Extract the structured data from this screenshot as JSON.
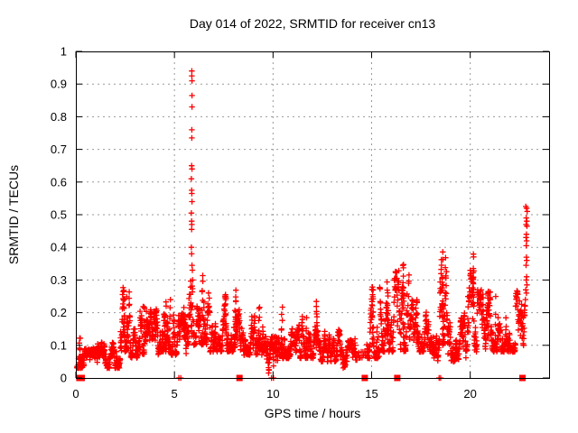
{
  "window": {
    "background": "#ffffff"
  },
  "chart_data": {
    "type": "scatter",
    "title": "Day 014 of 2022, SRMTID for receiver cn13",
    "xlabel": "GPS time / hours",
    "ylabel": "SRMTID / TECUs",
    "xlim": [
      0,
      24
    ],
    "ylim": [
      0,
      1
    ],
    "grid": true,
    "legend": "none",
    "xticks": [
      {
        "v": 0,
        "label": "0"
      },
      {
        "v": 5,
        "label": "5"
      },
      {
        "v": 10,
        "label": "10"
      },
      {
        "v": 15,
        "label": "15"
      },
      {
        "v": 20,
        "label": "20"
      }
    ],
    "yticks": [
      {
        "v": 0.0,
        "label": "0"
      },
      {
        "v": 0.1,
        "label": "0.1"
      },
      {
        "v": 0.2,
        "label": "0.2"
      },
      {
        "v": 0.3,
        "label": "0.3"
      },
      {
        "v": 0.4,
        "label": "0.4"
      },
      {
        "v": 0.5,
        "label": "0.5"
      },
      {
        "v": 0.6,
        "label": "0.6"
      },
      {
        "v": 0.7,
        "label": "0.7"
      },
      {
        "v": 0.8,
        "label": "0.8"
      },
      {
        "v": 0.9,
        "label": "0.9"
      },
      {
        "v": 1.0,
        "label": "1"
      }
    ],
    "marker": {
      "shape": "plus",
      "color": "#ff0000",
      "size": 7
    },
    "grid_color": "#999999",
    "axis_color": "#000000",
    "seed": 1337,
    "band_segments": [
      [
        0.05,
        0.35,
        0.03,
        0.13,
        30
      ],
      [
        0.35,
        1.1,
        0.02,
        0.09,
        90
      ],
      [
        1.1,
        2.25,
        0.03,
        0.11,
        130
      ],
      [
        2.25,
        2.75,
        0.08,
        0.28,
        60
      ],
      [
        2.75,
        3.25,
        0.06,
        0.15,
        60
      ],
      [
        3.25,
        4.2,
        0.07,
        0.21,
        110
      ],
      [
        4.2,
        4.8,
        0.08,
        0.25,
        70
      ],
      [
        4.8,
        5.6,
        0.07,
        0.2,
        90
      ],
      [
        5.6,
        6.25,
        0.1,
        0.33,
        70
      ],
      [
        6.25,
        6.8,
        0.1,
        0.32,
        60
      ],
      [
        6.8,
        7.5,
        0.08,
        0.18,
        80
      ],
      [
        7.5,
        8.3,
        0.08,
        0.26,
        90
      ],
      [
        8.3,
        9.5,
        0.07,
        0.2,
        130
      ],
      [
        9.5,
        10.3,
        0.015,
        0.13,
        90
      ],
      [
        10.3,
        11.2,
        0.06,
        0.2,
        100
      ],
      [
        11.2,
        12.4,
        0.06,
        0.19,
        130
      ],
      [
        12.4,
        13.4,
        0.05,
        0.15,
        110
      ],
      [
        13.4,
        14.2,
        0.03,
        0.12,
        80
      ],
      [
        14.2,
        14.7,
        0.02,
        0.08,
        12
      ],
      [
        14.75,
        15.4,
        0.06,
        0.28,
        70
      ],
      [
        15.4,
        16.1,
        0.08,
        0.3,
        80
      ],
      [
        16.1,
        16.9,
        0.08,
        0.33,
        90
      ],
      [
        16.9,
        18.0,
        0.08,
        0.24,
        120
      ],
      [
        18.0,
        18.45,
        0.05,
        0.15,
        50
      ],
      [
        18.45,
        18.8,
        0.1,
        0.38,
        45
      ],
      [
        18.8,
        19.8,
        0.05,
        0.2,
        110
      ],
      [
        19.8,
        20.35,
        0.08,
        0.33,
        60
      ],
      [
        20.35,
        21.3,
        0.08,
        0.27,
        110
      ],
      [
        21.3,
        22.3,
        0.08,
        0.21,
        110
      ],
      [
        22.3,
        22.78,
        0.1,
        0.27,
        50
      ]
    ],
    "bursts": [
      [
        0.2,
        0.05,
        0.13,
        8,
        0.06
      ],
      [
        2.45,
        0.12,
        0.28,
        12,
        0.08
      ],
      [
        2.6,
        0.12,
        0.26,
        8,
        0.05
      ],
      [
        3.45,
        0.1,
        0.22,
        8,
        0.08
      ],
      [
        4.05,
        0.1,
        0.22,
        8,
        0.06
      ],
      [
        4.55,
        0.1,
        0.26,
        10,
        0.08
      ],
      [
        5.5,
        0.1,
        0.24,
        8,
        0.06
      ],
      [
        6.45,
        0.15,
        0.33,
        14,
        0.1
      ],
      [
        7.6,
        0.12,
        0.26,
        10,
        0.06
      ],
      [
        8.1,
        0.12,
        0.27,
        10,
        0.08
      ],
      [
        9.3,
        0.1,
        0.22,
        8,
        0.06
      ],
      [
        10.45,
        0.1,
        0.22,
        8,
        0.06
      ],
      [
        11.7,
        0.1,
        0.21,
        8,
        0.08
      ],
      [
        12.2,
        0.08,
        0.24,
        8,
        0.06
      ],
      [
        15.05,
        0.1,
        0.3,
        12,
        0.07
      ],
      [
        15.8,
        0.12,
        0.3,
        12,
        0.08
      ],
      [
        16.6,
        0.15,
        0.37,
        14,
        0.07
      ],
      [
        17.3,
        0.1,
        0.25,
        8,
        0.08
      ],
      [
        18.6,
        0.15,
        0.4,
        14,
        0.06
      ],
      [
        20.15,
        0.12,
        0.38,
        12,
        0.06
      ],
      [
        20.9,
        0.12,
        0.28,
        10,
        0.07
      ]
    ],
    "spike_points": [
      [
        5.88,
        0.94
      ],
      [
        5.88,
        0.925
      ],
      [
        5.89,
        0.91
      ],
      [
        5.89,
        0.865
      ],
      [
        5.89,
        0.83
      ],
      [
        5.88,
        0.76
      ],
      [
        5.88,
        0.735
      ],
      [
        5.87,
        0.65
      ],
      [
        5.89,
        0.64
      ],
      [
        5.86,
        0.61
      ],
      [
        5.87,
        0.575
      ],
      [
        5.88,
        0.565
      ],
      [
        5.89,
        0.54
      ],
      [
        5.86,
        0.505
      ],
      [
        5.87,
        0.48
      ],
      [
        5.88,
        0.47
      ],
      [
        5.87,
        0.455
      ],
      [
        5.86,
        0.4
      ],
      [
        5.87,
        0.38
      ],
      [
        5.89,
        0.345
      ],
      [
        5.91,
        0.33
      ],
      [
        5.92,
        0.3
      ]
    ],
    "final_spike_points": [
      [
        22.82,
        0.525
      ],
      [
        22.86,
        0.52
      ],
      [
        22.89,
        0.51
      ],
      [
        22.84,
        0.49
      ],
      [
        22.87,
        0.48
      ],
      [
        22.83,
        0.47
      ],
      [
        22.88,
        0.465
      ],
      [
        22.85,
        0.44
      ],
      [
        22.83,
        0.43
      ],
      [
        22.86,
        0.42
      ],
      [
        22.84,
        0.405
      ],
      [
        22.85,
        0.37
      ],
      [
        22.87,
        0.36
      ],
      [
        22.83,
        0.345
      ],
      [
        22.86,
        0.31
      ],
      [
        22.84,
        0.3
      ],
      [
        22.88,
        0.285
      ],
      [
        22.82,
        0.27
      ],
      [
        22.85,
        0.26
      ],
      [
        22.8,
        0.24
      ],
      [
        22.78,
        0.22
      ],
      [
        22.75,
        0.2
      ],
      [
        22.7,
        0.185
      ],
      [
        22.65,
        0.16
      ],
      [
        22.6,
        0.15
      ],
      [
        22.55,
        0.13
      ]
    ],
    "zero_squares": [
      0.18,
      0.3,
      8.3,
      14.65,
      16.3,
      22.65
    ],
    "zero_plus": [
      5.22,
      5.32,
      9.92,
      10.02,
      18.42,
      18.5
    ]
  }
}
